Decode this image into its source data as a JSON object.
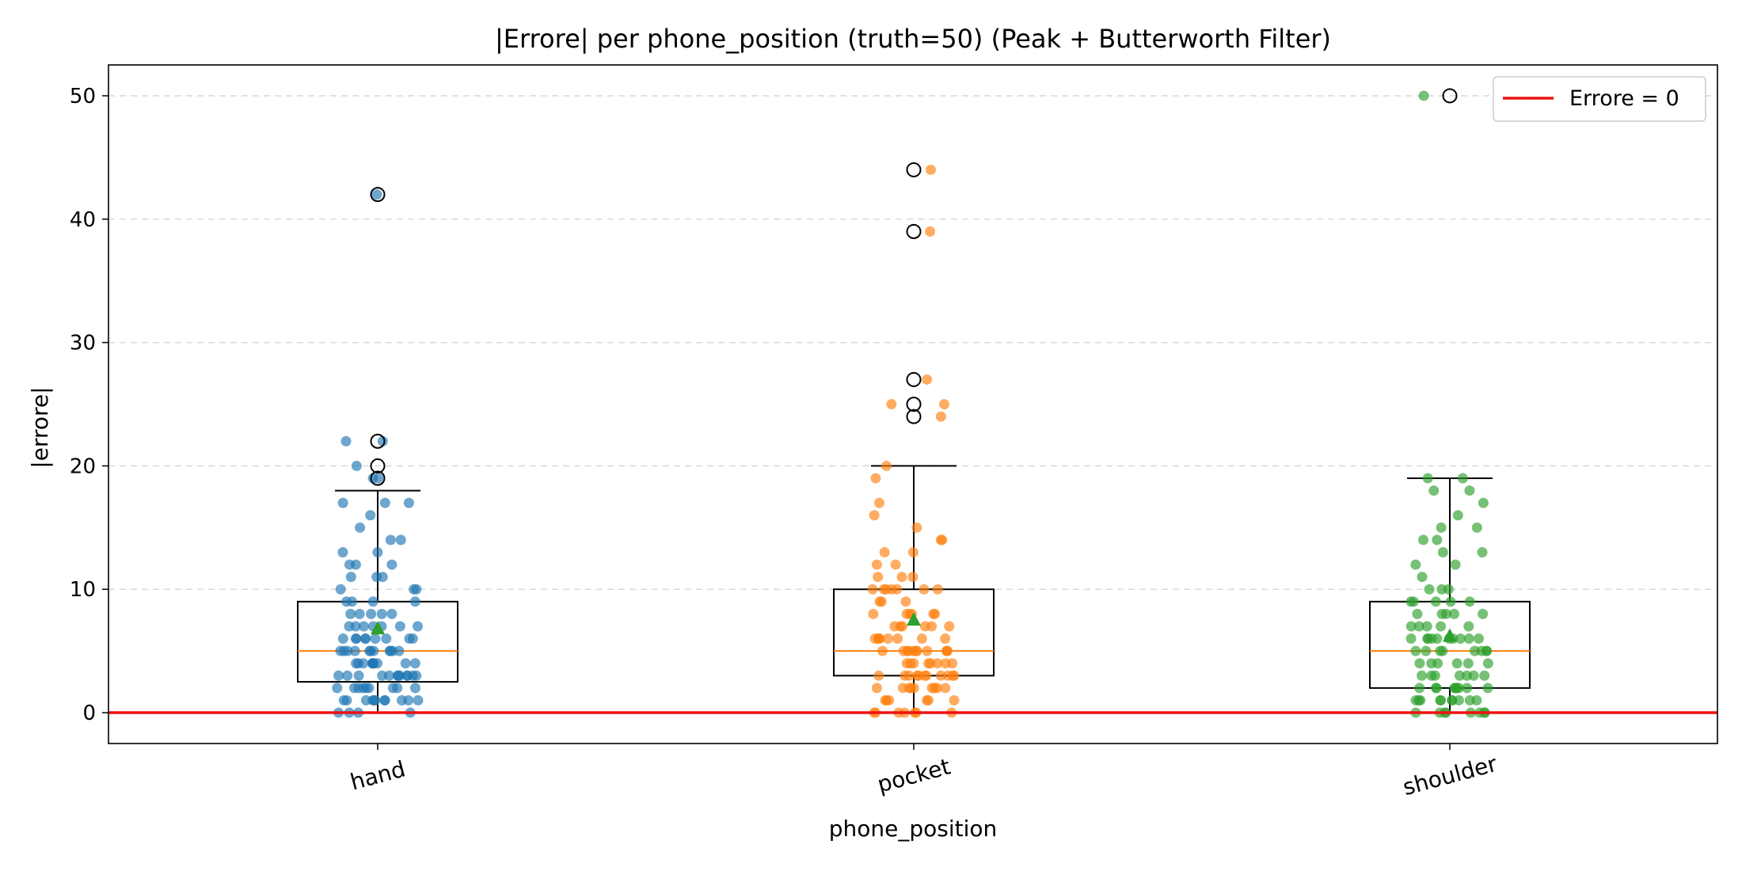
{
  "chart_data": {
    "type": "box",
    "title": "|Errore| per phone_position (truth=50) (Peak + Butterworth Filter)",
    "xlabel": "phone_position",
    "ylabel": "|errore|",
    "ylim": [
      -2.5,
      52.5
    ],
    "yticks": [
      0,
      10,
      20,
      30,
      40,
      50
    ],
    "grid": "y-dashed",
    "legend": {
      "position": "top-right",
      "entries": [
        "Errore = 0"
      ]
    },
    "reference_line": {
      "label": "Errore = 0",
      "y": 0,
      "color": "#ee1111"
    },
    "categories": [
      "hand",
      "pocket",
      "shoulder"
    ],
    "boxes": [
      {
        "category": "hand",
        "color": "#1f77b4",
        "q1": 2.5,
        "median": 5,
        "q3": 9,
        "whisker_low": 0,
        "whisker_high": 18,
        "mean": 6.8,
        "outliers": [
          19,
          20,
          22,
          42
        ],
        "points": [
          42,
          22,
          22,
          20,
          19,
          19,
          17,
          17,
          17,
          16,
          15,
          14,
          14,
          13,
          13,
          12,
          12,
          12,
          11,
          11,
          11,
          10,
          10,
          10,
          9,
          9,
          9,
          9,
          8,
          8,
          8,
          8,
          8,
          7,
          7,
          7,
          7,
          7,
          7,
          7,
          6,
          6,
          6,
          6,
          6,
          6,
          6,
          6,
          6,
          5,
          5,
          5,
          5,
          5,
          5,
          5,
          5,
          5,
          5,
          5,
          4,
          4,
          4,
          4,
          4,
          4,
          4,
          4,
          4,
          4,
          3,
          3,
          3,
          3,
          3,
          3,
          3,
          3,
          3,
          3,
          3,
          3,
          2,
          2,
          2,
          2,
          2,
          2,
          2,
          2,
          2,
          1,
          1,
          1,
          1,
          1,
          1,
          1,
          1,
          1,
          1,
          1,
          0,
          0,
          0,
          0
        ]
      },
      {
        "category": "pocket",
        "color": "#ff7f0e",
        "q1": 3,
        "median": 5,
        "q3": 10,
        "whisker_low": 0,
        "whisker_high": 20,
        "mean": 7.5,
        "outliers": [
          24,
          25,
          27,
          39,
          44
        ],
        "points": [
          44,
          39,
          27,
          25,
          25,
          24,
          20,
          19,
          17,
          16,
          15,
          14,
          14,
          13,
          13,
          12,
          12,
          11,
          11,
          11,
          10,
          10,
          10,
          10,
          10,
          10,
          10,
          9,
          9,
          9,
          8,
          8,
          8,
          8,
          8,
          8,
          7,
          7,
          7,
          7,
          7,
          7,
          6,
          6,
          6,
          6,
          6,
          6,
          6,
          6,
          5,
          5,
          5,
          5,
          5,
          5,
          5,
          5,
          5,
          5,
          5,
          4,
          4,
          4,
          4,
          4,
          4,
          4,
          4,
          3,
          3,
          3,
          3,
          3,
          3,
          3,
          3,
          3,
          3,
          3,
          2,
          2,
          2,
          2,
          2,
          2,
          2,
          2,
          2,
          1,
          1,
          1,
          1,
          1,
          1,
          0,
          0,
          0,
          0,
          0,
          0,
          0
        ]
      },
      {
        "category": "shoulder",
        "color": "#2ca02c",
        "q1": 2,
        "median": 5,
        "q3": 9,
        "whisker_low": 0,
        "whisker_high": 19,
        "mean": 6.2,
        "outliers": [
          50
        ],
        "points": [
          50,
          19,
          19,
          18,
          18,
          17,
          16,
          15,
          15,
          14,
          14,
          13,
          13,
          12,
          12,
          11,
          10,
          10,
          10,
          9,
          9,
          9,
          9,
          9,
          8,
          8,
          8,
          8,
          8,
          7,
          7,
          7,
          7,
          7,
          6,
          6,
          6,
          6,
          6,
          6,
          6,
          6,
          6,
          6,
          5,
          5,
          5,
          5,
          5,
          5,
          5,
          5,
          4,
          4,
          4,
          4,
          4,
          4,
          3,
          3,
          3,
          3,
          3,
          3,
          3,
          2,
          2,
          2,
          2,
          2,
          2,
          2,
          2,
          2,
          1,
          1,
          1,
          1,
          1,
          1,
          1,
          1,
          1,
          1,
          0,
          0,
          0,
          0,
          0,
          0,
          0,
          0
        ]
      }
    ]
  }
}
